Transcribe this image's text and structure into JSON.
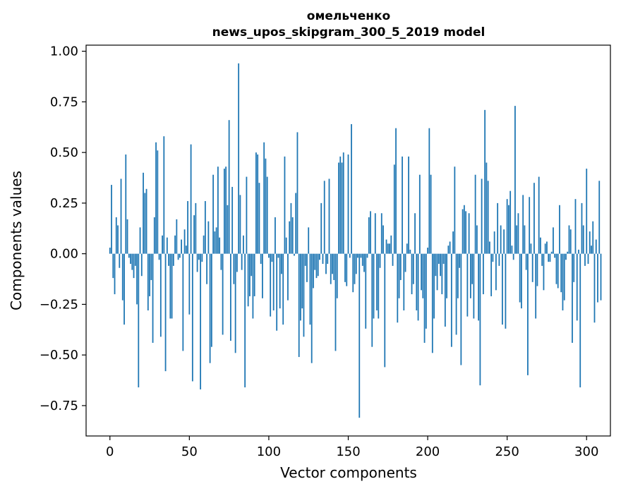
{
  "chart_data": {
    "type": "bar",
    "title": "омельченко",
    "subtitle": "news_upos_skipgram_300_5_2019 model",
    "xlabel": "Vector components",
    "ylabel": "Components values",
    "xlim": [
      -15,
      315
    ],
    "ylim": [
      -0.9,
      1.03
    ],
    "x_ticks": [
      0,
      50,
      100,
      150,
      200,
      250,
      300
    ],
    "x_tick_labels": [
      "0",
      "50",
      "100",
      "150",
      "200",
      "250",
      "300"
    ],
    "y_ticks": [
      -0.75,
      -0.5,
      -0.25,
      0.0,
      0.25,
      0.5,
      0.75,
      1.0
    ],
    "y_tick_labels": [
      "−0.75",
      "−0.50",
      "−0.25",
      "0.00",
      "0.25",
      "0.50",
      "0.75",
      "1.00"
    ],
    "bar_color": "#1f77b4",
    "grid": false,
    "values": [
      0.03,
      0.34,
      -0.12,
      -0.2,
      0.18,
      0.14,
      -0.07,
      0.37,
      -0.23,
      -0.35,
      0.49,
      0.17,
      -0.02,
      -0.05,
      -0.08,
      -0.12,
      -0.06,
      -0.25,
      -0.66,
      0.13,
      -0.11,
      0.4,
      0.3,
      0.32,
      -0.28,
      -0.21,
      -0.13,
      -0.44,
      0.18,
      0.55,
      0.51,
      -0.03,
      -0.41,
      0.09,
      0.58,
      -0.58,
      0.08,
      -0.06,
      -0.32,
      -0.32,
      -0.06,
      0.09,
      0.17,
      -0.03,
      -0.02,
      0.07,
      -0.48,
      0.12,
      0.04,
      0.26,
      -0.3,
      0.54,
      -0.63,
      0.19,
      0.25,
      -0.09,
      -0.03,
      -0.67,
      -0.04,
      0.09,
      0.26,
      -0.15,
      0.16,
      -0.54,
      -0.46,
      0.39,
      0.11,
      0.13,
      0.43,
      0.08,
      -0.08,
      -0.4,
      0.42,
      0.43,
      0.24,
      0.66,
      -0.43,
      0.33,
      -0.15,
      -0.49,
      -0.09,
      0.94,
      0.29,
      -0.08,
      0.09,
      -0.66,
      0.38,
      -0.26,
      -0.21,
      -0.11,
      -0.32,
      -0.21,
      0.5,
      0.49,
      0.35,
      -0.05,
      -0.22,
      0.55,
      0.47,
      0.38,
      -0.02,
      -0.31,
      -0.04,
      -0.28,
      0.18,
      -0.38,
      -0.02,
      -0.27,
      -0.1,
      -0.35,
      0.48,
      0.08,
      -0.23,
      0.16,
      0.25,
      0.18,
      -0.01,
      0.3,
      0.6,
      -0.51,
      -0.33,
      -0.27,
      -0.41,
      -0.06,
      -0.14,
      0.13,
      -0.35,
      -0.54,
      -0.17,
      -0.08,
      -0.12,
      -0.11,
      -0.03,
      0.25,
      -0.05,
      0.36,
      -0.1,
      -0.05,
      0.37,
      -0.15,
      -0.1,
      -0.13,
      -0.48,
      -0.22,
      0.45,
      0.48,
      0.45,
      0.5,
      -0.14,
      -0.16,
      0.49,
      -0.02,
      0.64,
      -0.19,
      -0.15,
      -0.1,
      -0.02,
      -0.81,
      -0.02,
      -0.06,
      -0.09,
      -0.37,
      -0.02,
      0.18,
      0.21,
      -0.46,
      -0.32,
      0.2,
      -0.28,
      -0.32,
      -0.07,
      0.2,
      0.14,
      -0.56,
      0.07,
      0.05,
      0.05,
      0.09,
      -0.06,
      0.44,
      0.62,
      -0.34,
      -0.22,
      -0.13,
      0.48,
      -0.28,
      -0.09,
      0.05,
      0.48,
      0.02,
      -0.2,
      -0.15,
      0.2,
      -0.28,
      -0.33,
      0.39,
      -0.18,
      -0.22,
      -0.44,
      -0.37,
      0.03,
      0.62,
      0.39,
      -0.49,
      -0.32,
      -0.11,
      -0.18,
      -0.05,
      -0.11,
      -0.2,
      -0.05,
      -0.36,
      -0.22,
      0.04,
      0.06,
      -0.46,
      0.11,
      0.43,
      -0.4,
      -0.22,
      -0.07,
      -0.55,
      0.22,
      0.24,
      0.21,
      -0.31,
      0.2,
      -0.22,
      -0.15,
      -0.32,
      0.39,
      0.14,
      -0.33,
      -0.65,
      0.37,
      -0.2,
      0.71,
      0.45,
      0.36,
      0.06,
      -0.21,
      -0.04,
      0.11,
      -0.18,
      0.25,
      -0.06,
      0.14,
      -0.35,
      0.12,
      -0.37,
      0.27,
      0.24,
      0.31,
      0.04,
      -0.03,
      0.73,
      0.14,
      0.2,
      -0.24,
      -0.27,
      0.29,
      0.14,
      -0.08,
      -0.6,
      0.28,
      0.05,
      -0.14,
      0.35,
      -0.32,
      -0.16,
      0.38,
      0.08,
      -0.06,
      -0.18,
      0.05,
      0.06,
      -0.04,
      -0.04,
      0.01,
      0.13,
      -0.02,
      -0.15,
      -0.17,
      0.24,
      -0.19,
      -0.28,
      -0.23,
      -0.03,
      0.01,
      0.14,
      0.12,
      -0.44,
      -0.14,
      0.27,
      -0.33,
      0.02,
      -0.66,
      0.25,
      0.14,
      -0.06,
      0.42,
      -0.05,
      0.11,
      0.04,
      0.16,
      -0.34,
      0.07,
      -0.24,
      0.36,
      -0.23
    ]
  }
}
